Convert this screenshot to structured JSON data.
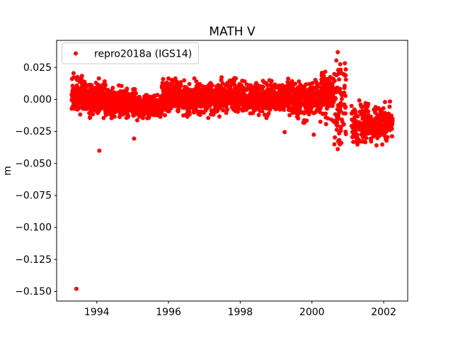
{
  "figure": {
    "background": "#ffffff"
  },
  "chart_data": {
    "type": "scatter",
    "title": "MATH V",
    "xlabel": "",
    "ylabel": "m",
    "grid": false,
    "axis_color": "#000000",
    "xlim": [
      1992.88,
      2002.67
    ],
    "ylim": [
      -0.1575,
      0.0462
    ],
    "xticks": [
      {
        "value": 1994,
        "label": "1994"
      },
      {
        "value": 1996,
        "label": "1996"
      },
      {
        "value": 1998,
        "label": "1998"
      },
      {
        "value": 2000,
        "label": "2000"
      },
      {
        "value": 2002,
        "label": "2002"
      }
    ],
    "yticks": [
      {
        "value": 0.025,
        "label": "0.025"
      },
      {
        "value": 0.0,
        "label": "0.000"
      },
      {
        "value": -0.025,
        "label": "−0.025"
      },
      {
        "value": -0.05,
        "label": "−0.050"
      },
      {
        "value": -0.075,
        "label": "−0.075"
      },
      {
        "value": -0.1,
        "label": "−0.100"
      },
      {
        "value": -0.125,
        "label": "−0.125"
      },
      {
        "value": -0.15,
        "label": "−0.150"
      }
    ],
    "legend": {
      "position": "upper left",
      "entries": [
        {
          "label": "repro2018a (IGS14)",
          "color": "#ff0000",
          "marker": "circle"
        }
      ]
    },
    "marker": {
      "color": "#ff0000",
      "radius": 3
    },
    "series": [
      {
        "name": "repro2018a (IGS14)",
        "color": "#ff0000",
        "cluster_segments": [
          {
            "x0": 1993.3,
            "x1": 1993.62,
            "mean": 0.004,
            "std": 0.006,
            "n": 130
          },
          {
            "x0": 1993.62,
            "x1": 1994.25,
            "mean": 0.001,
            "std": 0.0055,
            "n": 230
          },
          {
            "x0": 1994.25,
            "x1": 1995.1,
            "mean": -0.003,
            "std": 0.005,
            "n": 280
          },
          {
            "x0": 1995.1,
            "x1": 1995.8,
            "mean": -0.0055,
            "std": 0.0045,
            "n": 240
          },
          {
            "x0": 1995.8,
            "x1": 1996.45,
            "mean": 0.003,
            "std": 0.0065,
            "n": 230
          },
          {
            "x0": 1996.45,
            "x1": 1997.4,
            "mean": 0.001,
            "std": 0.0055,
            "n": 330
          },
          {
            "x0": 1997.4,
            "x1": 1998.45,
            "mean": 0.002,
            "std": 0.0055,
            "n": 360
          },
          {
            "x0": 1998.45,
            "x1": 1999.35,
            "mean": 0.001,
            "std": 0.0055,
            "n": 310
          },
          {
            "x0": 1999.35,
            "x1": 2000.25,
            "mean": 0.0,
            "std": 0.0065,
            "n": 300
          },
          {
            "x0": 2000.25,
            "x1": 2000.6,
            "mean": 0.006,
            "std": 0.009,
            "n": 130
          },
          {
            "x0": 2000.6,
            "x1": 2000.95,
            "mean": -0.002,
            "std": 0.016,
            "n": 85
          },
          {
            "x0": 2001.1,
            "x1": 2002.25,
            "mean": -0.019,
            "std": 0.007,
            "n": 300
          }
        ],
        "outliers": [
          [
            1993.43,
            -0.148
          ],
          [
            1994.07,
            -0.04
          ],
          [
            1995.04,
            -0.0305
          ],
          [
            1999.24,
            -0.0255
          ],
          [
            2000.05,
            -0.0275
          ],
          [
            2000.68,
            0.0305
          ],
          [
            2000.72,
            0.037
          ],
          [
            2000.78,
            -0.035
          ]
        ]
      }
    ]
  }
}
